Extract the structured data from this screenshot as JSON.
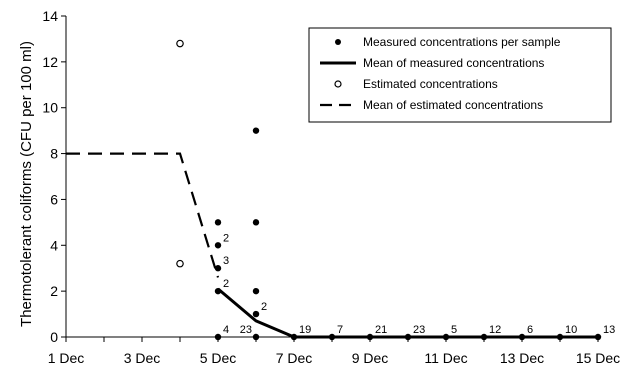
{
  "chart_data": {
    "type": "scatter",
    "title": "",
    "xlabel": "",
    "ylabel": "Thermotolerant coliforms (CFU per 100 ml)",
    "xlim": [
      1,
      15
    ],
    "ylim": [
      0,
      14
    ],
    "x_ticks": [
      {
        "value": 1,
        "label": "1 Dec"
      },
      {
        "value": 3,
        "label": "3 Dec"
      },
      {
        "value": 5,
        "label": "5 Dec"
      },
      {
        "value": 7,
        "label": "7 Dec"
      },
      {
        "value": 9,
        "label": "9 Dec"
      },
      {
        "value": 11,
        "label": "11 Dec"
      },
      {
        "value": 13,
        "label": "13 Dec"
      },
      {
        "value": 15,
        "label": "15 Dec"
      }
    ],
    "y_ticks": [
      0,
      2,
      4,
      6,
      8,
      10,
      12,
      14
    ],
    "grid": false,
    "legend_position": "top-right",
    "series": [
      {
        "name": "Measured concentrations per sample",
        "kind": "scatter",
        "marker": "filled-circle",
        "points": [
          {
            "x": 5,
            "y": 0
          },
          {
            "x": 5,
            "y": 2
          },
          {
            "x": 5,
            "y": 3
          },
          {
            "x": 5,
            "y": 4
          },
          {
            "x": 5,
            "y": 5
          },
          {
            "x": 6,
            "y": 0
          },
          {
            "x": 6,
            "y": 1
          },
          {
            "x": 6,
            "y": 2
          },
          {
            "x": 6,
            "y": 5
          },
          {
            "x": 6,
            "y": 9
          },
          {
            "x": 7,
            "y": 0
          },
          {
            "x": 8,
            "y": 0
          },
          {
            "x": 9,
            "y": 0
          },
          {
            "x": 10,
            "y": 0
          },
          {
            "x": 11,
            "y": 0
          },
          {
            "x": 12,
            "y": 0
          },
          {
            "x": 13,
            "y": 0
          },
          {
            "x": 14,
            "y": 0
          },
          {
            "x": 15,
            "y": 0
          }
        ]
      },
      {
        "name": "Mean of measured concentrations",
        "kind": "line",
        "style": "solid",
        "points": [
          {
            "x": 5,
            "y": 2.1
          },
          {
            "x": 6,
            "y": 0.7
          },
          {
            "x": 7,
            "y": 0
          },
          {
            "x": 8,
            "y": 0
          },
          {
            "x": 9,
            "y": 0
          },
          {
            "x": 10,
            "y": 0
          },
          {
            "x": 11,
            "y": 0
          },
          {
            "x": 12,
            "y": 0
          },
          {
            "x": 13,
            "y": 0
          },
          {
            "x": 14,
            "y": 0
          },
          {
            "x": 15,
            "y": 0
          }
        ]
      },
      {
        "name": "Estimated concentrations",
        "kind": "scatter",
        "marker": "open-circle",
        "points": [
          {
            "x": 4,
            "y": 12.8
          },
          {
            "x": 4,
            "y": 3.2
          }
        ]
      },
      {
        "name": "Mean of estimated concentrations",
        "kind": "line",
        "style": "dashed",
        "points": [
          {
            "x": 1,
            "y": 8
          },
          {
            "x": 4,
            "y": 8
          },
          {
            "x": 5,
            "y": 2.6
          }
        ]
      }
    ],
    "annotations": [
      {
        "text": "4",
        "x": 5,
        "y": 0
      },
      {
        "text": "2",
        "x": 5,
        "y": 2
      },
      {
        "text": "3",
        "x": 5,
        "y": 3
      },
      {
        "text": "2",
        "x": 5,
        "y": 4
      },
      {
        "text": "23",
        "x": 6,
        "y": 0,
        "anchor": "left"
      },
      {
        "text": "2",
        "x": 6,
        "y": 1
      },
      {
        "text": "19",
        "x": 7,
        "y": 0
      },
      {
        "text": "7",
        "x": 8,
        "y": 0
      },
      {
        "text": "21",
        "x": 9,
        "y": 0
      },
      {
        "text": "23",
        "x": 10,
        "y": 0
      },
      {
        "text": "5",
        "x": 11,
        "y": 0
      },
      {
        "text": "12",
        "x": 12,
        "y": 0
      },
      {
        "text": "6",
        "x": 13,
        "y": 0
      },
      {
        "text": "10",
        "x": 14,
        "y": 0
      },
      {
        "text": "13",
        "x": 15,
        "y": 0
      }
    ]
  }
}
